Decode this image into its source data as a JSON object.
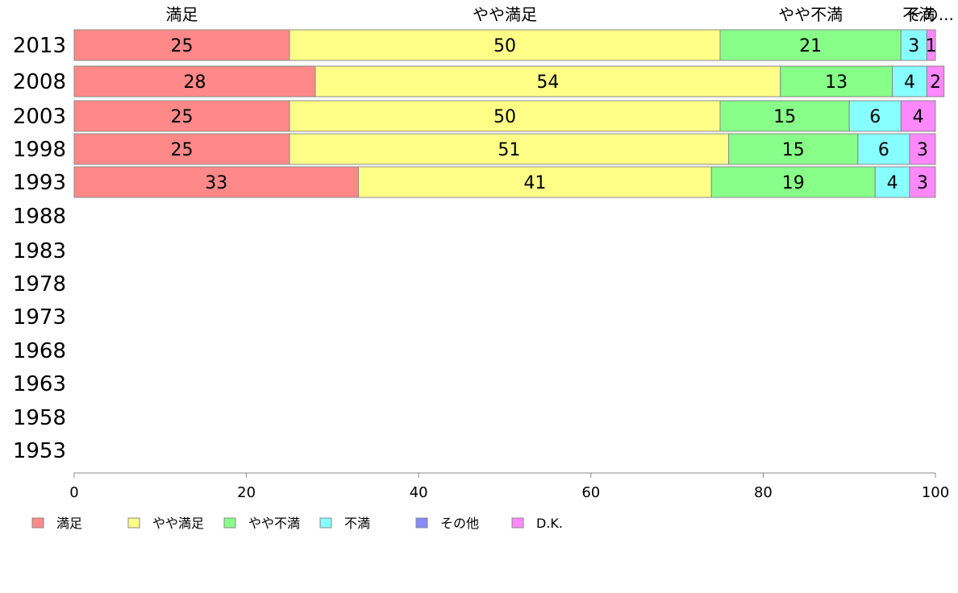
{
  "chart_data": {
    "type": "bar",
    "orientation": "horizontal",
    "stacked": true,
    "categories": [
      "2013",
      "2008",
      "2003",
      "1998",
      "1993",
      "1988",
      "1983",
      "1978",
      "1973",
      "1968",
      "1963",
      "1958",
      "1953"
    ],
    "series": [
      {
        "name": "満足",
        "color": "#ff8888",
        "values": [
          25,
          28,
          25,
          25,
          33,
          null,
          null,
          null,
          null,
          null,
          null,
          null,
          null
        ]
      },
      {
        "name": "やや満足",
        "color": "#ffff88",
        "values": [
          50,
          54,
          50,
          51,
          41,
          null,
          null,
          null,
          null,
          null,
          null,
          null,
          null
        ]
      },
      {
        "name": "やや不満",
        "color": "#88ff88",
        "values": [
          21,
          13,
          15,
          15,
          19,
          null,
          null,
          null,
          null,
          null,
          null,
          null,
          null
        ]
      },
      {
        "name": "不満",
        "color": "#88ffff",
        "values": [
          3,
          4,
          6,
          6,
          4,
          null,
          null,
          null,
          null,
          null,
          null,
          null,
          null
        ]
      },
      {
        "name": "その他",
        "color": "#8888ff",
        "values": [
          0,
          0,
          0,
          0,
          0,
          null,
          null,
          null,
          null,
          null,
          null,
          null,
          null
        ]
      },
      {
        "name": "D.K.",
        "color": "#ff88ff",
        "values": [
          1,
          2,
          4,
          3,
          3,
          null,
          null,
          null,
          null,
          null,
          null,
          null,
          null
        ]
      }
    ],
    "top_labels": [
      "満足",
      "やや満足",
      "やや不満",
      "不満",
      "その..."
    ],
    "xlim": [
      0,
      100
    ],
    "xticks": [
      0,
      20,
      40,
      60,
      80,
      100
    ],
    "grid": false,
    "legend_position": "bottom"
  }
}
